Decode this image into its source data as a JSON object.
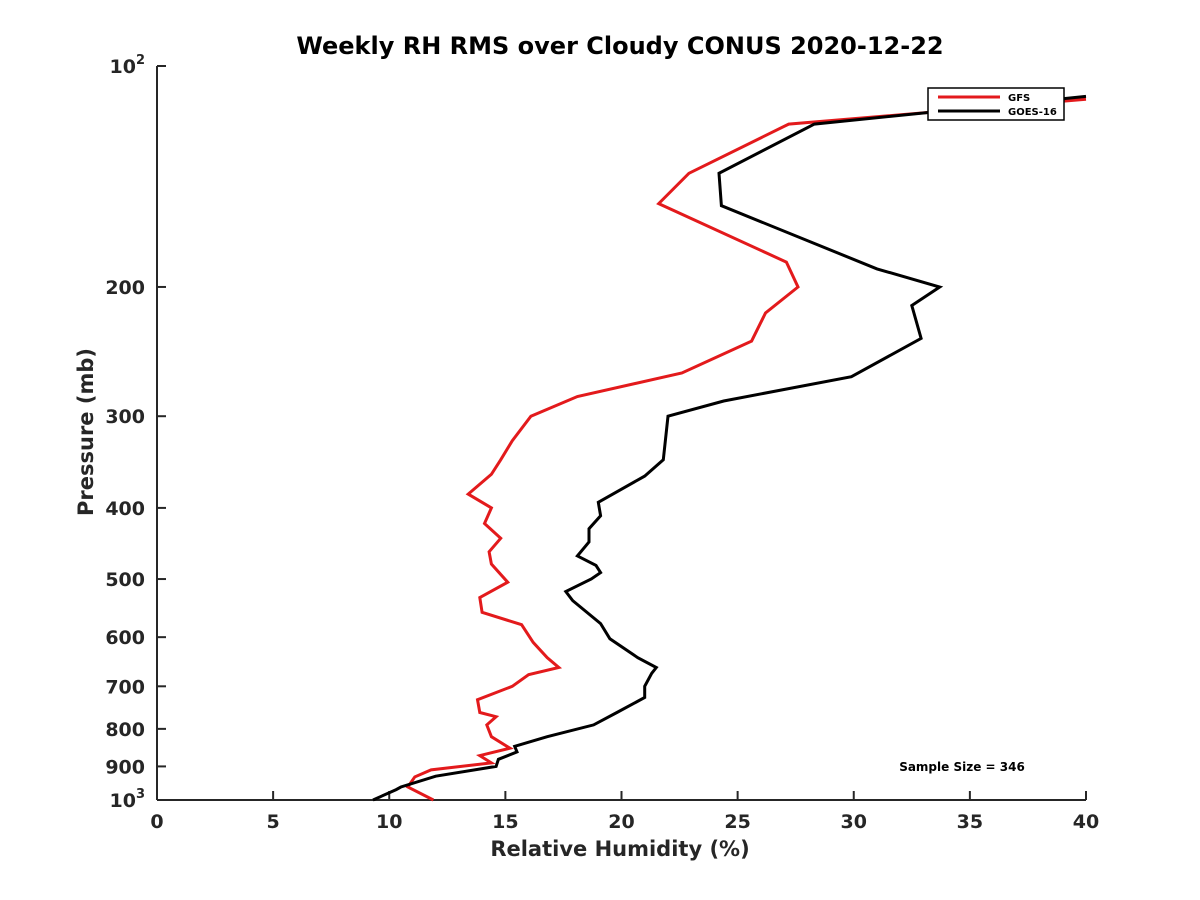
{
  "chart_data": {
    "type": "line",
    "title": "Weekly RH RMS over Cloudy CONUS 2020-12-22",
    "xlabel": "Relative Humidity (%)",
    "ylabel": "Pressure (mb)",
    "xlim": [
      0,
      40
    ],
    "ylim": [
      100,
      1000
    ],
    "y_scale": "log",
    "y_reversed": true,
    "x_ticks": [
      "0",
      "5",
      "10",
      "15",
      "20",
      "25",
      "30",
      "35",
      "40"
    ],
    "y_ticks": [
      {
        "value": 100,
        "base": "10",
        "exp": "2"
      },
      {
        "value": 200,
        "label": "200"
      },
      {
        "value": 300,
        "label": "300"
      },
      {
        "value": 400,
        "label": "400"
      },
      {
        "value": 500,
        "label": "500"
      },
      {
        "value": 600,
        "label": "600"
      },
      {
        "value": 700,
        "label": "700"
      },
      {
        "value": 800,
        "label": "800"
      },
      {
        "value": 900,
        "label": "900"
      },
      {
        "value": 1000,
        "base": "10",
        "exp": "3"
      }
    ],
    "legend_position": "top-right",
    "annotation": "Sample Size = 346",
    "series": [
      {
        "name": "GFS",
        "color": "#e31a1c",
        "points": [
          [
            40.0,
            111
          ],
          [
            27.2,
            120
          ],
          [
            22.9,
            140
          ],
          [
            21.6,
            154
          ],
          [
            27.1,
            185
          ],
          [
            27.6,
            200
          ],
          [
            26.2,
            217
          ],
          [
            25.6,
            237
          ],
          [
            22.6,
            262
          ],
          [
            18.1,
            282
          ],
          [
            16.1,
            300
          ],
          [
            15.3,
            324
          ],
          [
            14.8,
            344
          ],
          [
            14.4,
            360
          ],
          [
            13.4,
            383
          ],
          [
            14.4,
            400
          ],
          [
            14.1,
            420
          ],
          [
            14.8,
            440
          ],
          [
            14.3,
            459
          ],
          [
            14.4,
            477
          ],
          [
            15.1,
            505
          ],
          [
            13.9,
            530
          ],
          [
            14.0,
            555
          ],
          [
            15.7,
            577
          ],
          [
            16.2,
            610
          ],
          [
            16.8,
            640
          ],
          [
            17.3,
            660
          ],
          [
            16.0,
            675
          ],
          [
            15.3,
            700
          ],
          [
            13.8,
            730
          ],
          [
            13.9,
            760
          ],
          [
            14.6,
            770
          ],
          [
            14.2,
            790
          ],
          [
            14.4,
            820
          ],
          [
            15.2,
            850
          ],
          [
            13.9,
            870
          ],
          [
            14.4,
            890
          ],
          [
            11.8,
            910
          ],
          [
            11.1,
            930
          ],
          [
            10.8,
            960
          ],
          [
            11.9,
            1000
          ]
        ]
      },
      {
        "name": "GOES-16",
        "color": "#000000",
        "points": [
          [
            40.0,
            110
          ],
          [
            28.3,
            120
          ],
          [
            24.2,
            140
          ],
          [
            24.3,
            155
          ],
          [
            31.0,
            189
          ],
          [
            33.7,
            200
          ],
          [
            32.5,
            212
          ],
          [
            32.9,
            235
          ],
          [
            29.9,
            265
          ],
          [
            24.4,
            286
          ],
          [
            22.0,
            300
          ],
          [
            21.8,
            344
          ],
          [
            21.0,
            362
          ],
          [
            19.0,
            393
          ],
          [
            19.1,
            410
          ],
          [
            18.6,
            427
          ],
          [
            18.6,
            445
          ],
          [
            18.1,
            465
          ],
          [
            18.9,
            479
          ],
          [
            19.1,
            490
          ],
          [
            18.7,
            500
          ],
          [
            17.6,
            520
          ],
          [
            17.9,
            535
          ],
          [
            19.1,
            575
          ],
          [
            19.5,
            603
          ],
          [
            20.7,
            640
          ],
          [
            21.5,
            660
          ],
          [
            21.3,
            672
          ],
          [
            21.0,
            700
          ],
          [
            21.0,
            725
          ],
          [
            19.8,
            760
          ],
          [
            18.8,
            790
          ],
          [
            16.8,
            820
          ],
          [
            15.4,
            845
          ],
          [
            15.5,
            860
          ],
          [
            14.7,
            880
          ],
          [
            14.6,
            900
          ],
          [
            12.0,
            928
          ],
          [
            10.5,
            960
          ],
          [
            10.3,
            968
          ],
          [
            9.3,
            1000
          ]
        ]
      }
    ]
  }
}
